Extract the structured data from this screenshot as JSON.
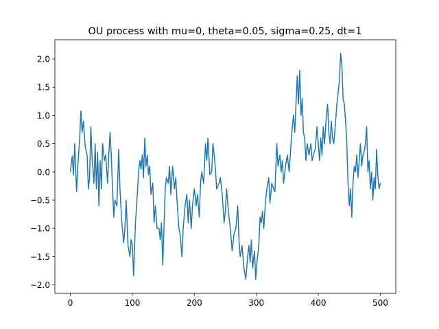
{
  "chart_data": {
    "type": "line",
    "title": "OU process with mu=0, theta=0.05, sigma=0.25, dt=1",
    "x": [
      0,
      3,
      5,
      7,
      10,
      12,
      15,
      17,
      19,
      21,
      24,
      27,
      29,
      31,
      33,
      35,
      38,
      40,
      42,
      44,
      46,
      48,
      50,
      52,
      55,
      57,
      60,
      62,
      64,
      66,
      68,
      70,
      72,
      75,
      78,
      80,
      83,
      86,
      88,
      90,
      93,
      96,
      98,
      100,
      102,
      105,
      108,
      110,
      112,
      114,
      116,
      118,
      120,
      122,
      124,
      126,
      128,
      130,
      133,
      135,
      137,
      140,
      143,
      145,
      147,
      149,
      151,
      153,
      155,
      158,
      160,
      162,
      165,
      168,
      170,
      172,
      175,
      177,
      180,
      182,
      185,
      188,
      190,
      192,
      195,
      197,
      200,
      203,
      205,
      208,
      210,
      212,
      215,
      218,
      220,
      222,
      225,
      228,
      230,
      233,
      236,
      240,
      242,
      245,
      248,
      250,
      252,
      255,
      258,
      261,
      264,
      267,
      270,
      272,
      274,
      277,
      280,
      283,
      286,
      288,
      290,
      292,
      294,
      297,
      299,
      301,
      304,
      306,
      308,
      310,
      312,
      315,
      317,
      320,
      322,
      325,
      328,
      330,
      333,
      335,
      338,
      340,
      342,
      344,
      347,
      350,
      353,
      356,
      358,
      360,
      362,
      364,
      366,
      368,
      370,
      372,
      374,
      376,
      378,
      380,
      382,
      385,
      388,
      390,
      392,
      395,
      398,
      400,
      402,
      404,
      406,
      408,
      410,
      413,
      415,
      417,
      419,
      421,
      423,
      425,
      428,
      430,
      432,
      434,
      436,
      438,
      440,
      442,
      444,
      446,
      448,
      450,
      452,
      454,
      456,
      458,
      460,
      462,
      464,
      466,
      468,
      470,
      472,
      475,
      478,
      480,
      482,
      484,
      486,
      488,
      490,
      492,
      494,
      496,
      498,
      500
    ],
    "series": [
      {
        "color": "#1f77b4",
        "values": [
          0,
          0.28,
          -0.05,
          0.5,
          -0.35,
          0.1,
          0.6,
          1.08,
          0.7,
          0.9,
          0.45,
          0.3,
          -0.3,
          -0.1,
          0.8,
          0.25,
          -0.2,
          0.5,
          -0.3,
          0.35,
          -0.6,
          0.2,
          -0.3,
          0.5,
          0.2,
          0.3,
          -0.2,
          0.3,
          0.7,
          0.3,
          -0.3,
          -0.8,
          -0.5,
          -0.6,
          0.4,
          -0.3,
          -0.9,
          -1.25,
          -1.0,
          -0.5,
          -1.3,
          -1.5,
          -1.2,
          -1.3,
          -1.84,
          -0.9,
          -0.4,
          0.0,
          0.2,
          0.05,
          0.3,
          -0.1,
          0.6,
          0.1,
          0.3,
          -0.05,
          0.1,
          -0.4,
          -0.2,
          -0.9,
          -0.6,
          -1.0,
          -1.0,
          -1.2,
          -0.9,
          -1.65,
          -1.0,
          -0.3,
          -0.1,
          -0.2,
          0.1,
          -0.4,
          0.1,
          -0.3,
          -0.1,
          -0.5,
          -1.0,
          -1.1,
          -1.5,
          -1.0,
          -0.6,
          -0.4,
          -0.9,
          -0.5,
          -1.0,
          -0.6,
          -0.3,
          -0.6,
          -0.4,
          -0.8,
          -0.2,
          0.0,
          -0.2,
          0.5,
          0.2,
          0.6,
          -0.05,
          0.0,
          0.5,
          0.2,
          -0.3,
          -0.2,
          -0.1,
          -0.4,
          -0.9,
          -0.7,
          -0.3,
          -0.7,
          -1.0,
          -1.4,
          -1.1,
          -1.0,
          -0.6,
          -1.2,
          -1.5,
          -1.3,
          -1.7,
          -1.9,
          -1.5,
          -1.3,
          -1.6,
          -1.2,
          -1.7,
          -1.4,
          -1.9,
          -1.6,
          -1.3,
          -0.8,
          -0.9,
          -0.7,
          -1.0,
          -0.5,
          -0.3,
          -0.1,
          -0.55,
          -0.2,
          -0.3,
          -0.35,
          0.5,
          0.1,
          0.3,
          0.0,
          0.2,
          -0.2,
          0.1,
          0.3,
          0.0,
          0.5,
          0.8,
          1.0,
          0.7,
          1.2,
          1.7,
          1.2,
          1.8,
          1.0,
          1.3,
          0.7,
          0.6,
          0.2,
          0.5,
          0.3,
          0.5,
          0.2,
          0.3,
          0.4,
          0.8,
          0.5,
          0.2,
          0.6,
          0.3,
          0.8,
          0.5,
          1.0,
          1.2,
          0.7,
          0.5,
          0.9,
          0.6,
          0.5,
          0.9,
          1.2,
          1.4,
          1.6,
          2.1,
          1.9,
          1.3,
          1.2,
          0.9,
          0.5,
          -0.2,
          -0.6,
          -0.3,
          -0.8,
          -0.2,
          0.1,
          0.0,
          0.3,
          -0.1,
          0.2,
          0.5,
          0.1,
          0.3,
          0.4,
          0.8,
          0.0,
          0.2,
          -0.3,
          0.0,
          -0.5,
          -0.1,
          -0.3,
          0.4,
          -0.05,
          -0.3,
          -0.2
        ]
      }
    ],
    "xlim": [
      -25,
      525
    ],
    "ylim": [
      -2.15,
      2.34
    ],
    "xticks": [
      0,
      100,
      200,
      300,
      400,
      500
    ],
    "yticks": [
      {
        "value": -2,
        "label": "−2.0"
      },
      {
        "value": -1.5,
        "label": "−1.5"
      },
      {
        "value": -1,
        "label": "−1.0"
      },
      {
        "value": -0.5,
        "label": "−0.5"
      },
      {
        "value": 0,
        "label": "0.0"
      },
      {
        "value": 0.5,
        "label": "0.5"
      },
      {
        "value": 1,
        "label": "1.0"
      },
      {
        "value": 1.5,
        "label": "1.5"
      },
      {
        "value": 2,
        "label": "2.0"
      }
    ]
  }
}
